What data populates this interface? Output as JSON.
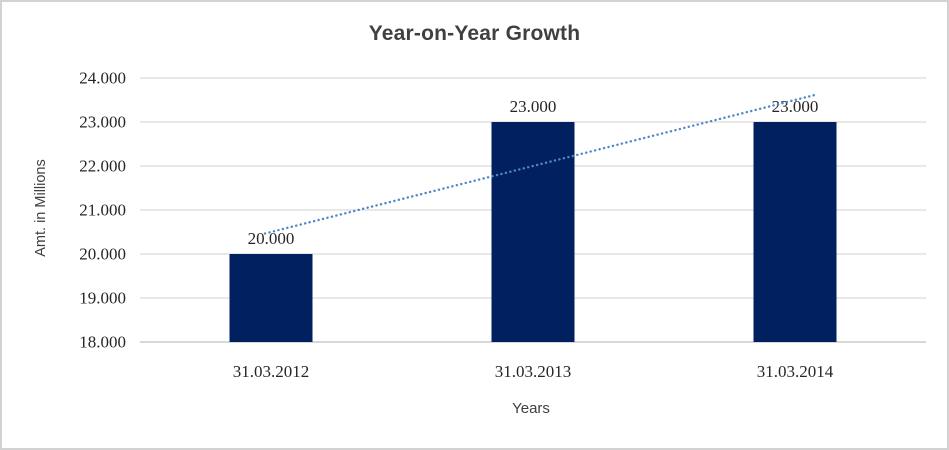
{
  "chart_data": {
    "type": "bar",
    "title": "Year-on-Year Growth",
    "xlabel": "Years",
    "ylabel": "Amt. in Millions",
    "categories": [
      "31.03.2012",
      "31.03.2013",
      "31.03.2014"
    ],
    "values": [
      20,
      23,
      23
    ],
    "value_labels": [
      "20.000",
      "23.000",
      "23.000"
    ],
    "ylim": [
      18,
      24
    ],
    "ytick_step": 1,
    "ytick_labels": [
      "18.000",
      "19.000",
      "20.000",
      "21.000",
      "22.000",
      "23.000",
      "24.000"
    ],
    "grid": "horizontal",
    "legend": "none",
    "trendline": {
      "type": "linear",
      "style": "dotted",
      "start_value": 20.5,
      "end_value": 23.5
    },
    "colors": {
      "bar": "#002060",
      "trendline": "#4e86c8",
      "gridline": "#d9d9d9",
      "axis_line": "#bfbfbf",
      "title_text": "#404040",
      "label_text": "#262626"
    }
  }
}
